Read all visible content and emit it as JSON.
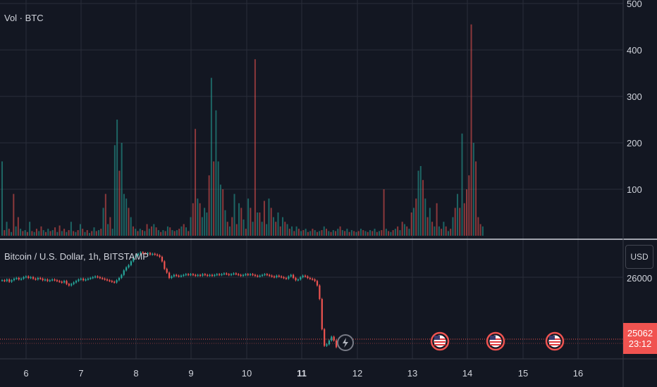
{
  "volume_pane": {
    "label": "Vol · BTC",
    "y_ticks": [
      100,
      200,
      300,
      400,
      500
    ],
    "ylim": [
      0,
      500
    ]
  },
  "price_pane": {
    "title": "Bitcoin / U.S. Dollar, 1h, BITSTAMP",
    "currency_button": "USD",
    "y_tick": "26000",
    "last_price": "25062",
    "countdown": "23:12"
  },
  "x_axis": {
    "ticks": [
      "6",
      "7",
      "8",
      "9",
      "10",
      "11",
      "12",
      "13",
      "14",
      "15",
      "16"
    ],
    "bold_tick": "11"
  },
  "colors": {
    "background": "#131722",
    "up": "#26a69a",
    "down": "#ef5350",
    "grid": "#2a2e39",
    "text": "#d1d4dc"
  },
  "event_icons": [
    "lightning-icon",
    "us-flag-icon",
    "us-flag-icon",
    "us-flag-icon"
  ],
  "chart_data": {
    "type": "bar",
    "title": "",
    "series": [
      {
        "name": "Vol · BTC",
        "values": [
          160,
          12,
          30,
          15,
          8,
          90,
          20,
          40,
          15,
          10,
          12,
          8,
          30,
          10,
          8,
          15,
          10,
          20,
          12,
          8,
          15,
          10,
          12,
          18,
          8,
          22,
          10,
          15,
          8,
          12,
          30,
          10,
          8,
          12,
          25,
          15,
          8,
          12,
          6,
          10,
          18,
          10,
          12,
          15,
          60,
          90,
          25,
          40,
          15,
          195,
          250,
          140,
          200,
          90,
          80,
          60,
          40,
          20,
          15,
          10,
          15,
          12,
          10,
          25,
          15,
          20,
          25,
          18,
          12,
          8,
          12,
          10,
          20,
          18,
          12,
          10,
          12,
          15,
          20,
          25,
          18,
          10,
          40,
          70,
          230,
          80,
          70,
          40,
          60,
          50,
          130,
          340,
          160,
          270,
          160,
          110,
          100,
          55,
          30,
          20,
          40,
          90,
          25,
          70,
          60,
          35,
          15,
          80,
          60,
          30,
          380,
          50,
          50,
          30,
          75,
          25,
          80,
          60,
          40,
          30,
          50,
          20,
          40,
          30,
          25,
          15,
          20,
          10,
          20,
          15,
          10,
          12,
          15,
          8,
          10,
          15,
          12,
          8,
          10,
          12,
          20,
          15,
          10,
          8,
          12,
          10,
          15,
          20,
          12,
          10,
          15,
          8,
          12,
          10,
          8,
          10,
          15,
          12,
          10,
          8,
          12,
          10,
          15,
          8,
          10,
          12,
          100,
          15,
          10,
          8,
          12,
          15,
          20,
          12,
          30,
          25,
          20,
          15,
          50,
          60,
          80,
          140,
          150,
          120,
          80,
          40,
          60,
          30,
          20,
          70,
          20,
          15,
          30,
          20,
          10,
          15,
          40,
          60,
          90,
          60,
          220,
          70,
          100,
          130,
          455,
          200,
          160,
          40,
          25,
          20
        ],
        "directions": [
          "u",
          "d",
          "u",
          "d",
          "u",
          "d",
          "u",
          "d",
          "u",
          "d",
          "u",
          "d",
          "u",
          "d",
          "u",
          "d",
          "u",
          "d",
          "u",
          "d",
          "u",
          "d",
          "u",
          "d",
          "u",
          "d",
          "u",
          "d",
          "u",
          "d",
          "u",
          "d",
          "u",
          "d",
          "u",
          "d",
          "u",
          "d",
          "u",
          "d",
          "u",
          "d",
          "u",
          "d",
          "u",
          "d",
          "u",
          "d",
          "u",
          "u",
          "u",
          "d",
          "u",
          "u",
          "u",
          "d",
          "u",
          "d",
          "u",
          "d",
          "u",
          "d",
          "u",
          "d",
          "u",
          "d",
          "u",
          "d",
          "u",
          "d",
          "u",
          "d",
          "u",
          "d",
          "u",
          "d",
          "u",
          "d",
          "u",
          "d",
          "u",
          "d",
          "u",
          "d",
          "d",
          "u",
          "d",
          "u",
          "u",
          "u",
          "d",
          "u",
          "d",
          "u",
          "u",
          "u",
          "d",
          "u",
          "d",
          "u",
          "d",
          "u",
          "d",
          "u",
          "d",
          "u",
          "d",
          "u",
          "d",
          "u",
          "d",
          "u",
          "d",
          "u",
          "d",
          "u",
          "u",
          "d",
          "u",
          "d",
          "u",
          "d",
          "u",
          "d",
          "u",
          "d",
          "u",
          "d",
          "u",
          "d",
          "u",
          "d",
          "u",
          "d",
          "u",
          "d",
          "u",
          "d",
          "u",
          "d",
          "u",
          "d",
          "u",
          "d",
          "u",
          "d",
          "u",
          "d",
          "u",
          "d",
          "u",
          "d",
          "u",
          "d",
          "u",
          "d",
          "u",
          "d",
          "u",
          "d",
          "u",
          "d",
          "u",
          "d",
          "u",
          "d",
          "d",
          "u",
          "d",
          "u",
          "d",
          "u",
          "d",
          "u",
          "d",
          "u",
          "d",
          "u",
          "d",
          "u",
          "d",
          "u",
          "u",
          "d",
          "u",
          "d",
          "u",
          "d",
          "u",
          "d",
          "u",
          "d",
          "u",
          "d",
          "u",
          "d",
          "u",
          "d",
          "u",
          "d",
          "u",
          "d",
          "d",
          "d",
          "d",
          "u",
          "d",
          "d",
          "d",
          "u",
          "d",
          "u"
        ]
      },
      {
        "name": "Bitcoin / U.S. Dollar, 1h, BITSTAMP",
        "close": [
          25950,
          25940,
          25960,
          25930,
          25950,
          25970,
          25980,
          25960,
          25970,
          25990,
          26000,
          25980,
          25990,
          25970,
          25960,
          25980,
          25970,
          25950,
          25960,
          25940,
          25950,
          25960,
          25950,
          25940,
          25930,
          25920,
          25940,
          25900,
          25880,
          25900,
          25920,
          25940,
          25960,
          25970,
          25950,
          25960,
          25970,
          25980,
          25990,
          26000,
          25990,
          25980,
          25970,
          25960,
          25950,
          25940,
          25930,
          25920,
          25950,
          25980,
          26020,
          26080,
          26120,
          26150,
          26200,
          26250,
          26280,
          26300,
          26320,
          26310,
          26300,
          26310,
          26290,
          26300,
          26290,
          26280,
          26260,
          26200,
          26100,
          26050,
          25980,
          26000,
          26020,
          26010,
          26000,
          26010,
          26020,
          26030,
          26020,
          26030,
          26020,
          26010,
          26020,
          26010,
          26030,
          26020,
          26010,
          26020,
          26010,
          26020,
          26030,
          26020,
          26030,
          26040,
          26030,
          26020,
          26030,
          26040,
          26030,
          26020,
          26010,
          26020,
          26030,
          26020,
          26030,
          26020,
          26010,
          26000,
          26010,
          26020,
          26030,
          26020,
          26010,
          26000,
          25990,
          26010,
          26000,
          25990,
          25980,
          25970,
          26000,
          26020,
          25980,
          25950,
          25960,
          25990,
          26010,
          26000,
          25980,
          25970,
          25960,
          25940,
          25880,
          25700,
          25300,
          25080,
          25100,
          25150,
          25200,
          25150,
          25062
        ],
        "ylim": [
          25000,
          26400
        ]
      }
    ],
    "x_ticks": [
      "6",
      "7",
      "8",
      "9",
      "10",
      "11",
      "12",
      "13",
      "14",
      "15",
      "16"
    ],
    "xlabel": "",
    "ylabel": "",
    "grid": true
  }
}
